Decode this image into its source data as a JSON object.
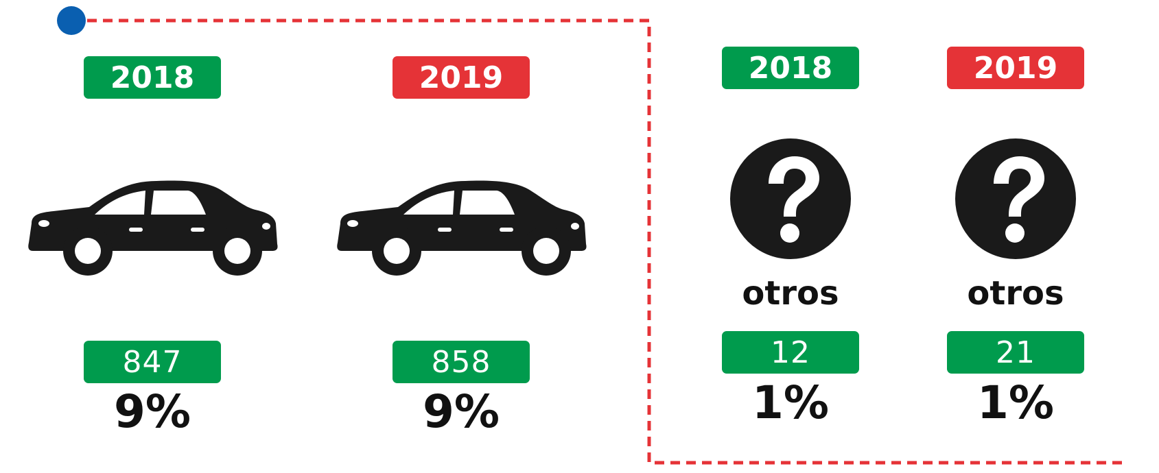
{
  "colors": {
    "green": "#009b4d",
    "red": "#e53337",
    "dash": "#e53337",
    "dot": "#0a5fb0",
    "icon": "#1a1a1a"
  },
  "vehicles": [
    {
      "icon": "car-icon",
      "year": "2018",
      "year_color": "green",
      "count": "847",
      "percent": "9%"
    },
    {
      "icon": "car-icon",
      "year": "2019",
      "year_color": "red",
      "count": "858",
      "percent": "9%"
    }
  ],
  "others": [
    {
      "icon": "question-icon",
      "year": "2018",
      "year_color": "green",
      "label": "otros",
      "count": "12",
      "percent": "1%"
    },
    {
      "icon": "question-icon",
      "year": "2019",
      "year_color": "red",
      "label": "otros",
      "count": "21",
      "percent": "1%"
    }
  ]
}
